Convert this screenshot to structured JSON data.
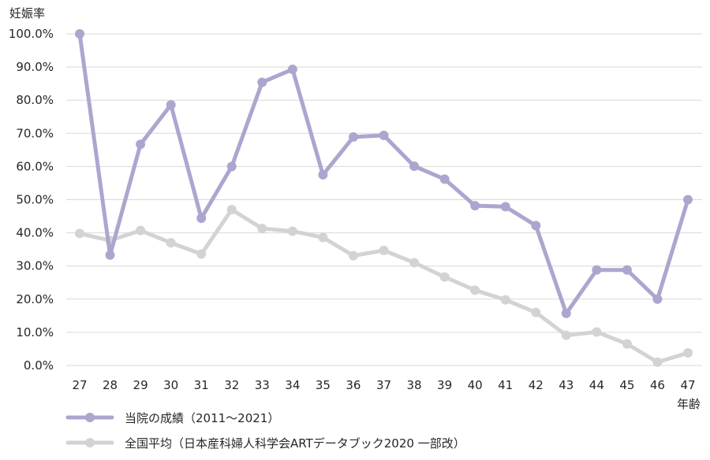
{
  "chart_data": {
    "type": "line",
    "ylabel": "妊娠率",
    "xlabel": "年齢",
    "categories": [
      "27",
      "28",
      "29",
      "30",
      "31",
      "32",
      "33",
      "34",
      "35",
      "36",
      "37",
      "38",
      "39",
      "40",
      "41",
      "42",
      "43",
      "44",
      "45",
      "46",
      "47"
    ],
    "y_ticks": [
      "0.0%",
      "10.0%",
      "20.0%",
      "30.0%",
      "40.0%",
      "50.0%",
      "60.0%",
      "70.0%",
      "80.0%",
      "90.0%",
      "100.0%"
    ],
    "ylim": [
      0,
      100
    ],
    "grid": true,
    "legend_position": "bottom-left",
    "series": [
      {
        "name": "当院の成績（2011～2021）",
        "color": "#aca6cf",
        "values": [
          100.0,
          33.3,
          66.7,
          78.6,
          44.4,
          60.0,
          85.4,
          89.3,
          57.5,
          68.9,
          69.4,
          60.1,
          56.2,
          48.2,
          47.9,
          42.2,
          15.7,
          28.8,
          28.8,
          20.0,
          50.0
        ]
      },
      {
        "name": "全国平均（日本産科婦人科学会ARTデータブック2020 一部改）",
        "color": "#d3d3d3",
        "values": [
          39.8,
          37.7,
          40.7,
          37.0,
          33.6,
          47.0,
          41.3,
          40.5,
          38.6,
          33.1,
          34.7,
          31.0,
          26.7,
          22.7,
          19.8,
          16.0,
          9.1,
          10.1,
          6.5,
          1.0,
          3.8
        ]
      }
    ]
  }
}
